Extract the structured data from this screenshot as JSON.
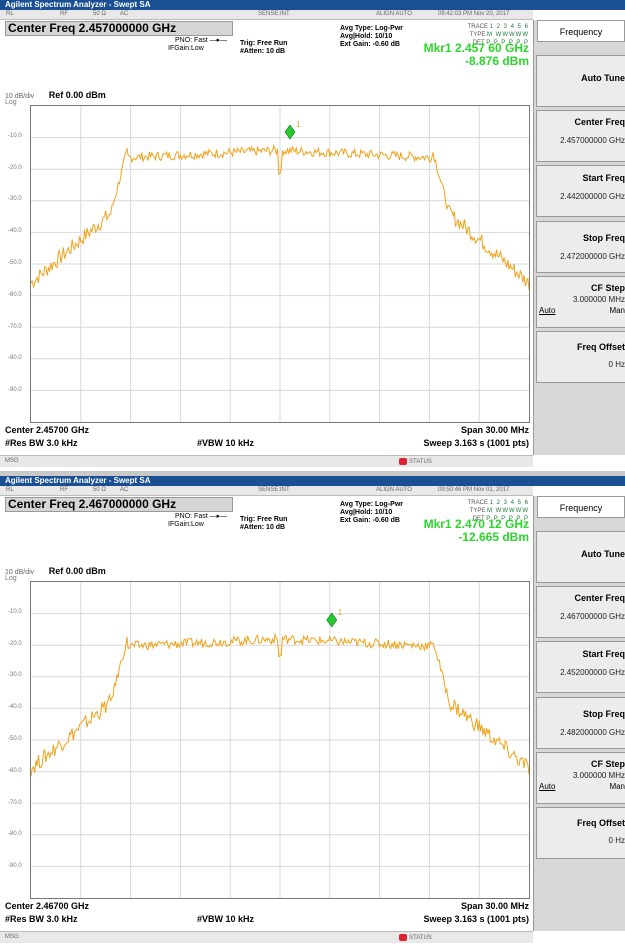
{
  "panels": [
    {
      "app_title": "Agilent Spectrum Analyzer - Swept SA",
      "top_bar": [
        "RL",
        "RF",
        "50 Ω",
        "AC",
        "SENSE:INT",
        "ALIGN AUTO",
        "09:42:03 PM Nov 20, 2017"
      ],
      "center_freq_box": "Center Freq 2.457000000 GHz",
      "pno": "PNO: Fast",
      "ifgain": "IFGain:Low",
      "trig": "Trig: Free Run",
      "atten": "#Atten: 10 dB",
      "avg_type": "Avg Type: Log-Pwr",
      "avg_hold": "Avg|Hold: 10/10",
      "ext_gain": "Ext Gain: -0.60 dB",
      "trace_lbl": "TRACE",
      "trace_val": "1 2 3 4 5 6",
      "type_lbl": "TYPE",
      "type_val": "M WWWWW",
      "det_lbl": "DET",
      "det_val": "P P P P P P",
      "marker_freq": "Mkr1 2.457 60 GHz",
      "marker_amp": "-8.876 dBm",
      "db_div": "10 dB/div",
      "ref_level": "Ref 0.00 dBm",
      "log_label": "Log",
      "y_ticks": [
        "-10.0",
        "-20.0",
        "-30.0",
        "-40.0",
        "-50.0",
        "-60.0",
        "-70.0",
        "-80.0",
        "-90.0"
      ],
      "center_label": "Center 2.45700 GHz",
      "span_label": "Span 30.00 MHz",
      "res_bw": "#Res BW 3.0 kHz",
      "vbw": "#VBW 10 kHz",
      "sweep": "Sweep  3.163 s (1001 pts)",
      "msg": "MSG",
      "status": "STATUS",
      "marker_number": "1",
      "softkeys": {
        "menu": "Frequency",
        "auto_tune": "Auto Tune",
        "center_freq": "Center Freq",
        "center_freq_val": "2.457000000 GHz",
        "start_freq": "Start Freq",
        "start_freq_val": "2.442000000 GHz",
        "stop_freq": "Stop Freq",
        "stop_freq_val": "2.472000000 GHz",
        "cf_step": "CF Step",
        "cf_step_val": "3.000000 MHz",
        "auto": "Auto",
        "man": "Man",
        "freq_offset": "Freq Offset",
        "freq_offset_val": "0 Hz"
      },
      "trace_color": "#f0a21a",
      "marker_color": "#28c832",
      "trace_shape": {
        "noise_floor_dbm": -56,
        "plateau_dbm": -14,
        "dip_dbm": -22,
        "marker_dbm": -8.876,
        "marker_offset_mhz": 0.6
      }
    },
    {
      "app_title": "Agilent Spectrum Analyzer - Swept SA",
      "top_bar": [
        "RL",
        "RF",
        "50 Ω",
        "AC",
        "SENSE:INT",
        "ALIGN AUTO",
        "09:50:46 PM Nov 01, 2017"
      ],
      "center_freq_box": "Center Freq 2.467000000 GHz",
      "pno": "PNO: Fast",
      "ifgain": "IFGain:Low",
      "trig": "Trig: Free Run",
      "atten": "#Atten: 10 dB",
      "avg_type": "Avg Type: Log-Pwr",
      "avg_hold": "Avg|Hold: 10/10",
      "ext_gain": "Ext Gain: -0.60 dB",
      "trace_lbl": "TRACE",
      "trace_val": "1 2 3 4 5 6",
      "type_lbl": "TYPE",
      "type_val": "M WWWWW",
      "det_lbl": "DET",
      "det_val": "P P P P P P",
      "marker_freq": "Mkr1 2.470 12 GHz",
      "marker_amp": "-12.665 dBm",
      "db_div": "10 dB/div",
      "ref_level": "Ref 0.00 dBm",
      "log_label": "Log",
      "y_ticks": [
        "-10.0",
        "-20.0",
        "-30.0",
        "-40.0",
        "-50.0",
        "-60.0",
        "-70.0",
        "-80.0",
        "-90.0"
      ],
      "center_label": "Center 2.46700 GHz",
      "span_label": "Span 30.00 MHz",
      "res_bw": "#Res BW 3.0 kHz",
      "vbw": "#VBW 10 kHz",
      "sweep": "Sweep  3.163 s (1001 pts)",
      "msg": "MSG",
      "status": "STATUS",
      "marker_number": "1",
      "softkeys": {
        "menu": "Frequency",
        "auto_tune": "Auto Tune",
        "center_freq": "Center Freq",
        "center_freq_val": "2.467000000 GHz",
        "start_freq": "Start Freq",
        "start_freq_val": "2.452000000 GHz",
        "stop_freq": "Stop Freq",
        "stop_freq_val": "2.482000000 GHz",
        "cf_step": "CF Step",
        "cf_step_val": "3.000000 MHz",
        "auto": "Auto",
        "man": "Man",
        "freq_offset": "Freq Offset",
        "freq_offset_val": "0 Hz"
      },
      "trace_color": "#f0a21a",
      "marker_color": "#28c832",
      "trace_shape": {
        "noise_floor_dbm": -59,
        "plateau_dbm": -18,
        "dip_dbm": -24,
        "marker_dbm": -12.665,
        "marker_offset_mhz": 3.12
      }
    }
  ]
}
